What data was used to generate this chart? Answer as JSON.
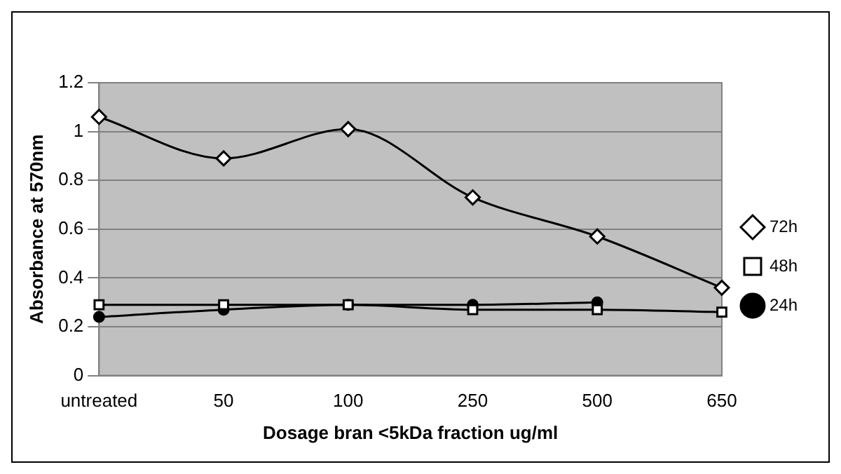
{
  "chart_data": {
    "type": "line",
    "xlabel": "Dosage bran <5kDa fraction ug/ml",
    "ylabel": "Absorbance at 570nm",
    "categories": [
      "untreated",
      "50",
      "100",
      "250",
      "500",
      "650"
    ],
    "series": [
      {
        "name": "24h",
        "color": "#000000",
        "marker": "circle",
        "values": [
          0.24,
          0.27,
          0.29,
          0.29,
          0.3,
          null
        ]
      },
      {
        "name": "48h",
        "color": "#000000",
        "marker": "square",
        "values": [
          0.29,
          0.29,
          0.29,
          0.27,
          0.27,
          0.26
        ]
      },
      {
        "name": "72h",
        "color": "#000000",
        "marker": "diamond",
        "values": [
          1.06,
          0.89,
          1.01,
          0.73,
          0.57,
          0.36
        ]
      }
    ],
    "ylim": [
      0,
      1.2
    ],
    "yticks": [
      0,
      0.2,
      0.4,
      0.6,
      0.8,
      1,
      1.2
    ],
    "grid": "y",
    "legend": "right"
  }
}
